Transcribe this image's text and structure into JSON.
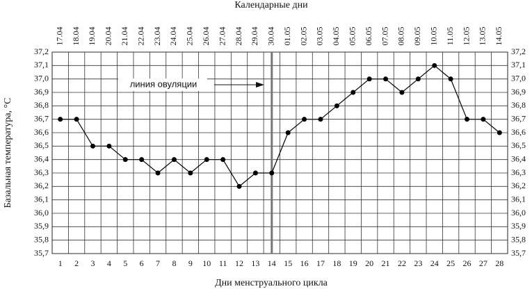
{
  "chart_data": {
    "type": "line",
    "title": "Календарные дни",
    "x_label": "Дни менструального цикла",
    "y_label": "Базальная температура, °C",
    "categories": [
      "1",
      "2",
      "3",
      "4",
      "5",
      "6",
      "7",
      "8",
      "9",
      "10",
      "11",
      "12",
      "13",
      "14",
      "15",
      "16",
      "17",
      "18",
      "19",
      "20",
      "21",
      "22",
      "23",
      "24",
      "25",
      "26",
      "27",
      "28"
    ],
    "dates": [
      "17.04",
      "18.04",
      "19.04",
      "20.04",
      "21.04",
      "22.04",
      "23.04",
      "24.04",
      "25.04",
      "26.04",
      "27.04",
      "28.04",
      "29.04",
      "30.04",
      "01.05",
      "02.05",
      "03.05",
      "04.05",
      "05.05",
      "06.05",
      "07.05",
      "08.05",
      "09.05",
      "10.05",
      "11.05",
      "12.05",
      "13.05",
      "14.05"
    ],
    "series": [
      {
        "name": "Базальная температура",
        "color": "#000000",
        "values": [
          36.7,
          36.7,
          36.5,
          36.5,
          36.4,
          36.4,
          36.3,
          36.4,
          36.3,
          36.4,
          36.4,
          36.2,
          36.3,
          36.3,
          36.6,
          36.7,
          36.7,
          36.8,
          36.9,
          37.0,
          37.0,
          36.9,
          37.0,
          37.1,
          37.0,
          36.7,
          36.7,
          36.6
        ]
      }
    ],
    "ylim": [
      35.7,
      37.2
    ],
    "yticks": [
      {
        "value": 35.7,
        "label": "35,7"
      },
      {
        "value": 35.8,
        "label": "35,8"
      },
      {
        "value": 35.9,
        "label": "35,9"
      },
      {
        "value": 36.0,
        "label": "36,0"
      },
      {
        "value": 36.1,
        "label": "36,1"
      },
      {
        "value": 36.2,
        "label": "36,2"
      },
      {
        "value": 36.3,
        "label": "36,3"
      },
      {
        "value": 36.4,
        "label": "36,4"
      },
      {
        "value": 36.5,
        "label": "36,5"
      },
      {
        "value": 36.6,
        "label": "36,6"
      },
      {
        "value": 36.7,
        "label": "36,7"
      },
      {
        "value": 36.8,
        "label": "36,8"
      },
      {
        "value": 36.9,
        "label": "36,9"
      },
      {
        "value": 37.0,
        "label": "37,0"
      },
      {
        "value": 37.1,
        "label": "37,1"
      },
      {
        "value": 37.2,
        "label": "37,2"
      }
    ],
    "grid": true,
    "annotation": {
      "text": "линия овуляции",
      "day": 14,
      "color": "#777777"
    }
  }
}
